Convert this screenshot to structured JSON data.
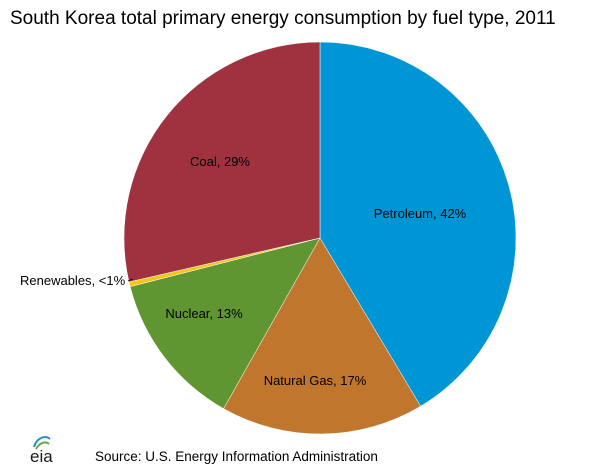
{
  "chart_data": {
    "type": "pie",
    "title": "South Korea total primary energy consumption by fuel type, 2011",
    "slices": [
      {
        "label": "Petroleum, 42%",
        "name": "Petroleum",
        "value": 42,
        "color": "#0096d6"
      },
      {
        "label": "Natural Gas, 17%",
        "name": "Natural Gas",
        "value": 17,
        "color": "#c0762d"
      },
      {
        "label": "Nuclear, 13%",
        "name": "Nuclear",
        "value": 13,
        "color": "#5f9632"
      },
      {
        "label": "Renewables,  <1%",
        "name": "Renewables",
        "value": 0.4,
        "color": "#f5c518"
      },
      {
        "label": "Coal, 29%",
        "name": "Coal",
        "value": 29,
        "color": "#a03240"
      }
    ],
    "start": "top",
    "direction": "clockwise"
  },
  "source": "Source: U.S. Energy Information Administration",
  "logo": {
    "text": "eia",
    "colors": [
      "#1f8ec8",
      "#6aa84f"
    ]
  }
}
